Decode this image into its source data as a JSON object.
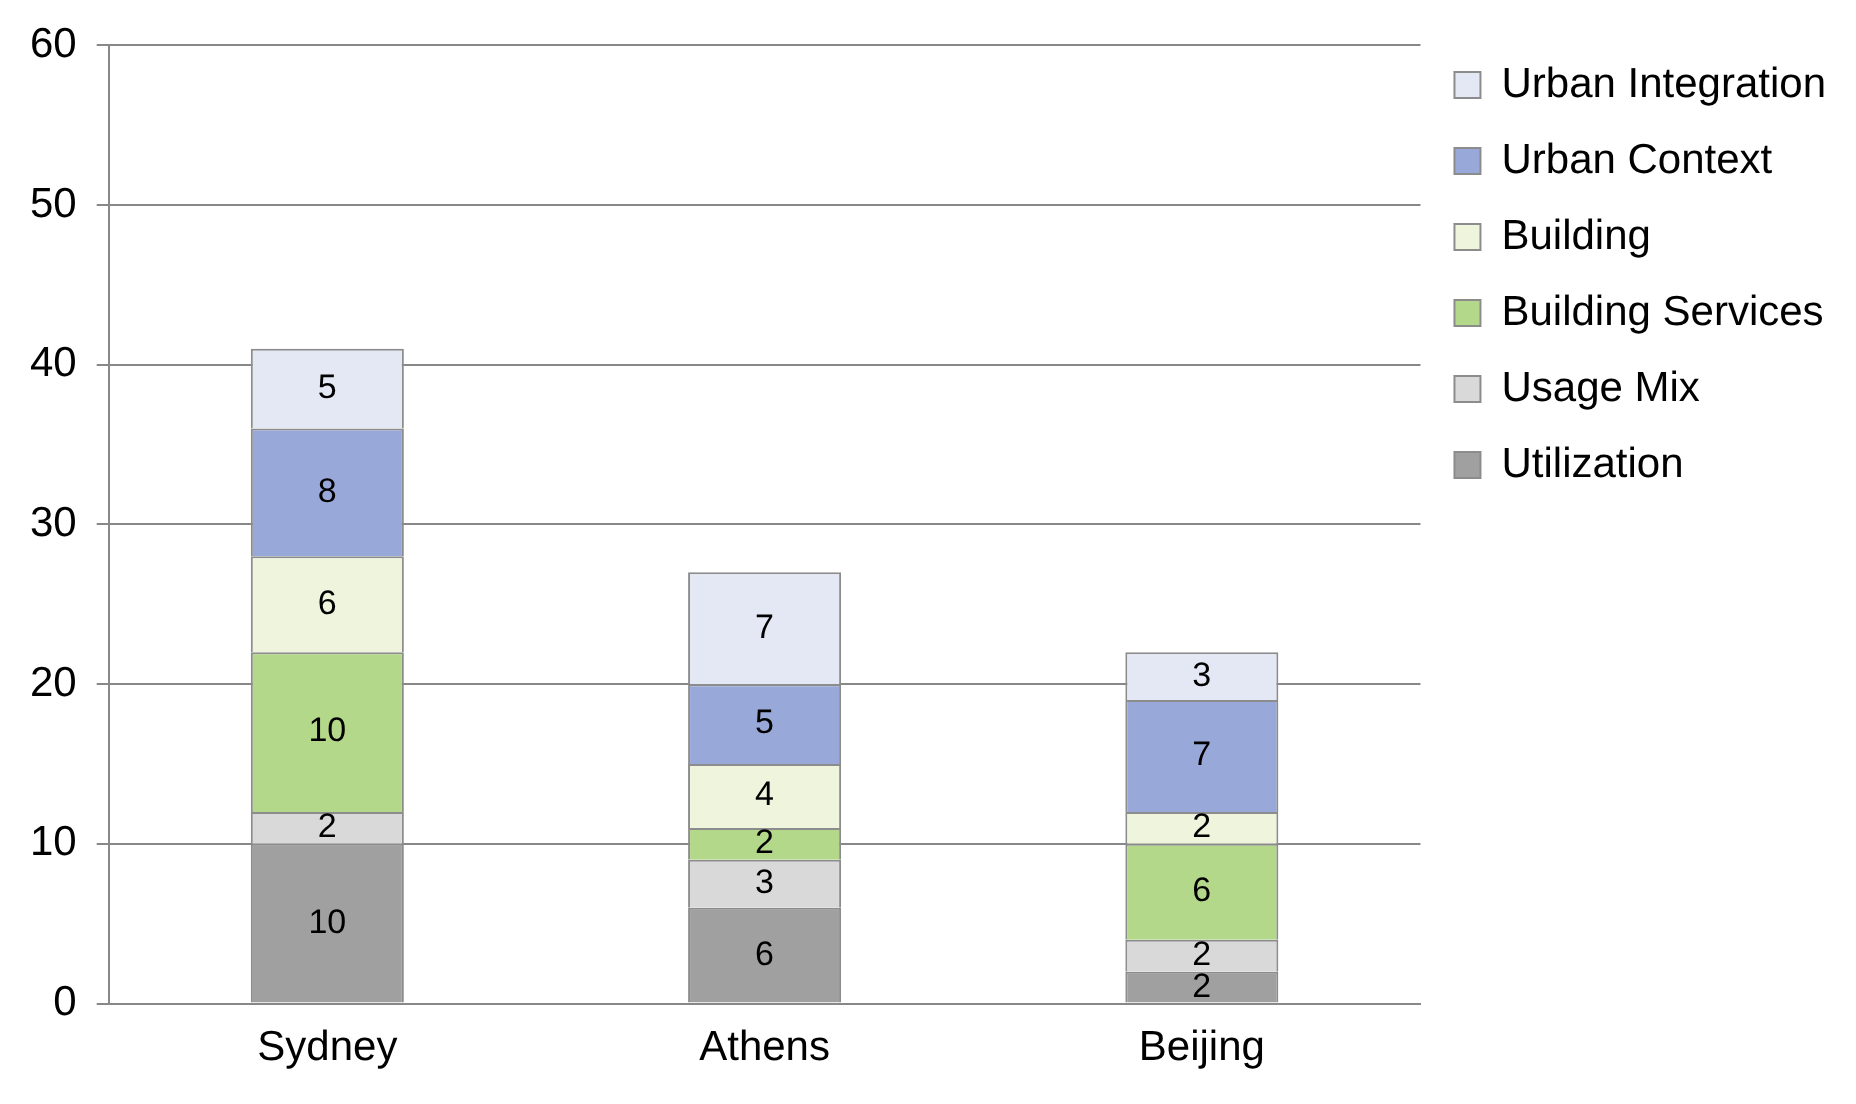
{
  "chart_data": {
    "type": "bar",
    "stacked": true,
    "categories": [
      "Sydney",
      "Athens",
      "Beijing"
    ],
    "series": [
      {
        "name": "Utilization",
        "color": "#a0a0a0",
        "values": [
          10,
          6,
          2
        ]
      },
      {
        "name": "Usage Mix",
        "color": "#d9d9d9",
        "values": [
          2,
          3,
          2
        ]
      },
      {
        "name": "Building Services",
        "color": "#b3d88a",
        "values": [
          10,
          2,
          6
        ]
      },
      {
        "name": "Building",
        "color": "#eef5dc",
        "values": [
          6,
          4,
          2
        ]
      },
      {
        "name": "Urban Context",
        "color": "#98a8d8",
        "values": [
          8,
          5,
          7
        ]
      },
      {
        "name": "Urban Integration",
        "color": "#e4e8f5",
        "values": [
          5,
          7,
          3
        ]
      }
    ],
    "ylim": [
      0,
      60
    ],
    "yticks": [
      0,
      10,
      20,
      30,
      40,
      50,
      60
    ],
    "grid": "y",
    "legend": "right",
    "data_labels": true
  }
}
